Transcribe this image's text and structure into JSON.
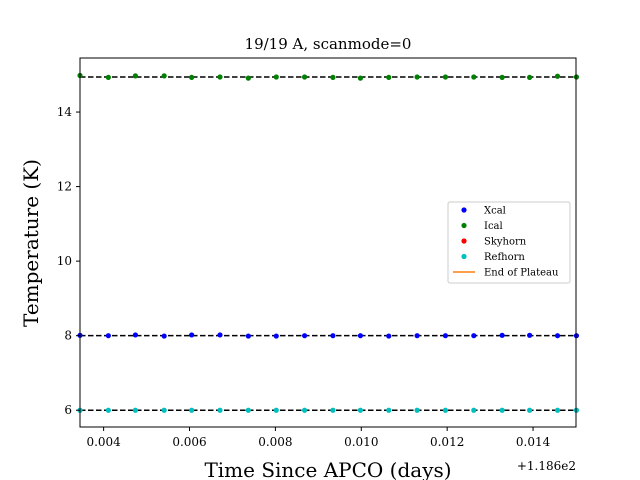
{
  "chart_data": {
    "type": "scatter",
    "title": "19/19 A, scanmode=0",
    "xlabel": "Time Since APCO (days)",
    "ylabel": "Temperature (K)",
    "x_offset_label": "+1.186e2",
    "xlim": [
      0.00345,
      0.015
    ],
    "ylim": [
      5.55,
      15.45
    ],
    "x_ticks": [
      0.004,
      0.006,
      0.008,
      0.01,
      0.012,
      0.014
    ],
    "x_tick_labels": [
      "0.004",
      "0.006",
      "0.008",
      "0.010",
      "0.012",
      "0.014"
    ],
    "y_ticks": [
      6,
      8,
      10,
      12,
      14
    ],
    "y_tick_labels": [
      "6",
      "8",
      "10",
      "12",
      "14"
    ],
    "grid": false,
    "legend_position": "center-right",
    "x": [
      0.00345,
      0.00411,
      0.00474,
      0.00541,
      0.00605,
      0.00671,
      0.00737,
      0.00802,
      0.00868,
      0.00934,
      0.00998,
      0.01064,
      0.0113,
      0.01196,
      0.01262,
      0.01328,
      0.01392,
      0.01457,
      0.01501
    ],
    "series": [
      {
        "name": "Xcal",
        "color": "#0000ff",
        "values": [
          8.01,
          8.0,
          8.02,
          7.99,
          8.02,
          8.02,
          7.99,
          7.99,
          8.0,
          8.0,
          8.0,
          7.99,
          8.0,
          8.0,
          8.0,
          8.01,
          8.01,
          8.0,
          8.0
        ]
      },
      {
        "name": "Ical",
        "color": "#008000",
        "values": [
          14.98,
          14.93,
          14.97,
          14.97,
          14.93,
          14.94,
          14.91,
          14.94,
          14.94,
          14.93,
          14.91,
          14.93,
          14.94,
          14.94,
          14.94,
          14.93,
          14.93,
          14.96,
          14.94
        ]
      },
      {
        "name": "Skyhorn",
        "color": "#ff0000",
        "values": []
      },
      {
        "name": "Refhorn",
        "color": "#00bfbf",
        "values": [
          6.0,
          6.0,
          6.0,
          6.0,
          6.0,
          6.0,
          6.0,
          6.0,
          6.0,
          6.0,
          6.0,
          6.0,
          6.0,
          6.0,
          6.0,
          6.0,
          6.0,
          6.0,
          6.0
        ]
      }
    ],
    "reference_lines": [
      {
        "y": 14.94,
        "style": "dashed",
        "color": "#000000"
      },
      {
        "y": 8.0,
        "style": "dashed",
        "color": "#000000"
      },
      {
        "y": 6.0,
        "style": "dashed",
        "color": "#000000"
      }
    ],
    "legend_entries": [
      {
        "label": "Xcal",
        "color": "#0000ff",
        "kind": "marker"
      },
      {
        "label": "Ical",
        "color": "#008000",
        "kind": "marker"
      },
      {
        "label": "Skyhorn",
        "color": "#ff0000",
        "kind": "marker"
      },
      {
        "label": "Refhorn",
        "color": "#00bfbf",
        "kind": "marker"
      },
      {
        "label": "End of Plateau",
        "color": "#ff7f0e",
        "kind": "line"
      }
    ]
  }
}
